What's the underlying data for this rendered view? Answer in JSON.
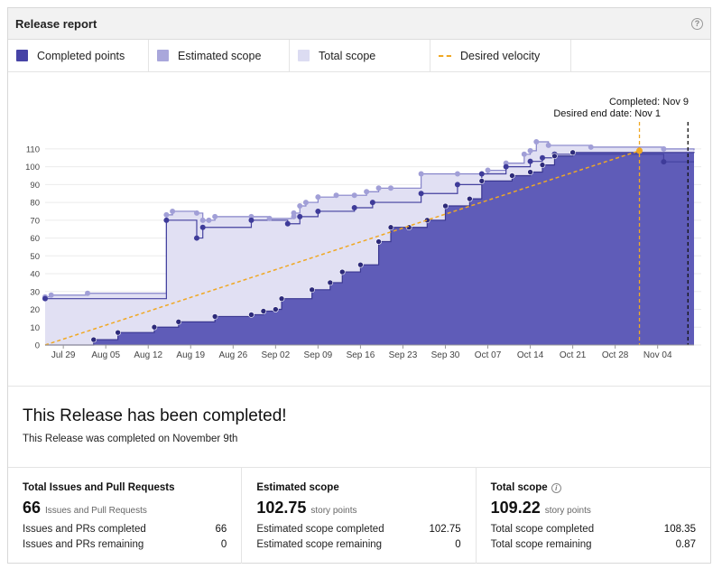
{
  "header": {
    "title": "Release report",
    "help_icon": "question-circle-icon"
  },
  "legend": [
    {
      "label": "Completed points",
      "color": "#3d3aa0",
      "kind": "swatch"
    },
    {
      "label": "Estimated scope",
      "color": "#a9a7db",
      "kind": "swatch"
    },
    {
      "label": "Total scope",
      "color": "#dcdcf2",
      "kind": "swatch"
    },
    {
      "label": "Desired velocity",
      "color": "#f0a823",
      "kind": "dash"
    }
  ],
  "annotations": {
    "completed": "Completed: Nov 9",
    "desired_end": "Desired end date: Nov 1"
  },
  "completed_section": {
    "heading": "This Release has been completed!",
    "sub": "This Release was completed on November 9th"
  },
  "stats": [
    {
      "title": "Total Issues and Pull Requests",
      "value": "66",
      "unit": "Issues and Pull Requests",
      "info": false,
      "rows": [
        {
          "label": "Issues and PRs completed",
          "value": "66"
        },
        {
          "label": "Issues and PRs remaining",
          "value": "0"
        }
      ]
    },
    {
      "title": "Estimated scope",
      "value": "102.75",
      "unit": "story points",
      "info": false,
      "rows": [
        {
          "label": "Estimated scope completed",
          "value": "102.75"
        },
        {
          "label": "Estimated scope remaining",
          "value": "0"
        }
      ]
    },
    {
      "title": "Total scope",
      "value": "109.22",
      "unit": "story points",
      "info": true,
      "rows": [
        {
          "label": "Total scope completed",
          "value": "108.35"
        },
        {
          "label": "Total scope remaining",
          "value": "0.87"
        }
      ]
    }
  ],
  "chart_data": {
    "type": "area",
    "x_ticks": [
      "Jul 29",
      "Aug 05",
      "Aug 12",
      "Aug 19",
      "Aug 26",
      "Sep 02",
      "Sep 09",
      "Sep 16",
      "Sep 23",
      "Sep 30",
      "Oct 07",
      "Oct 14",
      "Oct 21",
      "Oct 28",
      "Nov 04"
    ],
    "x_range": [
      "Jul 26",
      "Nov 10"
    ],
    "ylim": [
      0,
      115
    ],
    "y_ticks": [
      0,
      10,
      20,
      30,
      40,
      50,
      60,
      70,
      80,
      90,
      100,
      110
    ],
    "grid": true,
    "series": [
      {
        "name": "Total scope",
        "color": "#dcdcf2",
        "points": [
          [
            "Jul 26",
            27
          ],
          [
            "Jul 27",
            28
          ],
          [
            "Aug 02",
            29
          ],
          [
            "Aug 15",
            73
          ],
          [
            "Aug 16",
            75
          ],
          [
            "Aug 20",
            74
          ],
          [
            "Aug 21",
            70
          ],
          [
            "Aug 22",
            70
          ],
          [
            "Aug 23",
            72
          ],
          [
            "Aug 29",
            72
          ],
          [
            "Sep 01",
            71
          ],
          [
            "Sep 05",
            72
          ],
          [
            "Sep 05",
            74
          ],
          [
            "Sep 06",
            78
          ],
          [
            "Sep 07",
            80
          ],
          [
            "Sep 09",
            83
          ],
          [
            "Sep 12",
            84
          ],
          [
            "Sep 15",
            84
          ],
          [
            "Sep 17",
            86
          ],
          [
            "Sep 19",
            88
          ],
          [
            "Sep 21",
            88
          ],
          [
            "Sep 26",
            96
          ],
          [
            "Oct 02",
            96
          ],
          [
            "Oct 07",
            98
          ],
          [
            "Oct 10",
            102
          ],
          [
            "Oct 13",
            107
          ],
          [
            "Oct 14",
            109
          ],
          [
            "Oct 15",
            114
          ],
          [
            "Oct 17",
            112
          ],
          [
            "Oct 24",
            111
          ],
          [
            "Nov 05",
            110
          ],
          [
            "Nov 10",
            109.22
          ]
        ]
      },
      {
        "name": "Estimated scope",
        "color": "#a9a7db",
        "points": [
          [
            "Jul 26",
            26
          ],
          [
            "Aug 15",
            70
          ],
          [
            "Aug 20",
            60
          ],
          [
            "Aug 21",
            66
          ],
          [
            "Aug 29",
            70
          ],
          [
            "Sep 04",
            68
          ],
          [
            "Sep 06",
            72
          ],
          [
            "Sep 09",
            75
          ],
          [
            "Sep 15",
            77
          ],
          [
            "Sep 18",
            80
          ],
          [
            "Sep 26",
            85
          ],
          [
            "Oct 02",
            90
          ],
          [
            "Oct 06",
            96
          ],
          [
            "Oct 10",
            100
          ],
          [
            "Oct 14",
            103
          ],
          [
            "Oct 16",
            105
          ],
          [
            "Oct 18",
            107
          ],
          [
            "Nov 05",
            102.75
          ],
          [
            "Nov 10",
            102.75
          ]
        ]
      },
      {
        "name": "Completed points",
        "color": "#5e5bb7",
        "points": [
          [
            "Jul 26",
            0
          ],
          [
            "Aug 03",
            3
          ],
          [
            "Aug 07",
            7
          ],
          [
            "Aug 13",
            10
          ],
          [
            "Aug 17",
            13
          ],
          [
            "Aug 23",
            16
          ],
          [
            "Aug 29",
            17
          ],
          [
            "Aug 31",
            19
          ],
          [
            "Sep 02",
            20
          ],
          [
            "Sep 03",
            26
          ],
          [
            "Sep 08",
            31
          ],
          [
            "Sep 11",
            35
          ],
          [
            "Sep 13",
            41
          ],
          [
            "Sep 16",
            45
          ],
          [
            "Sep 19",
            58
          ],
          [
            "Sep 21",
            66
          ],
          [
            "Sep 24",
            66
          ],
          [
            "Sep 27",
            70
          ],
          [
            "Sep 30",
            78
          ],
          [
            "Oct 04",
            82
          ],
          [
            "Oct 06",
            92
          ],
          [
            "Oct 11",
            95
          ],
          [
            "Oct 14",
            97
          ],
          [
            "Oct 16",
            101
          ],
          [
            "Oct 18",
            106
          ],
          [
            "Oct 21",
            108
          ],
          [
            "Nov 10",
            108.35
          ]
        ]
      }
    ],
    "desired_velocity": {
      "name": "Desired velocity",
      "color": "#f0a823",
      "from": [
        "Jul 26",
        0
      ],
      "to": [
        "Nov 01",
        109
      ]
    },
    "markers": [
      {
        "label": "Completed: Nov 9",
        "date": "Nov 09",
        "style": "black-dashed"
      },
      {
        "label": "Desired end date: Nov 1",
        "date": "Nov 01",
        "style": "orange-dashed"
      }
    ]
  }
}
